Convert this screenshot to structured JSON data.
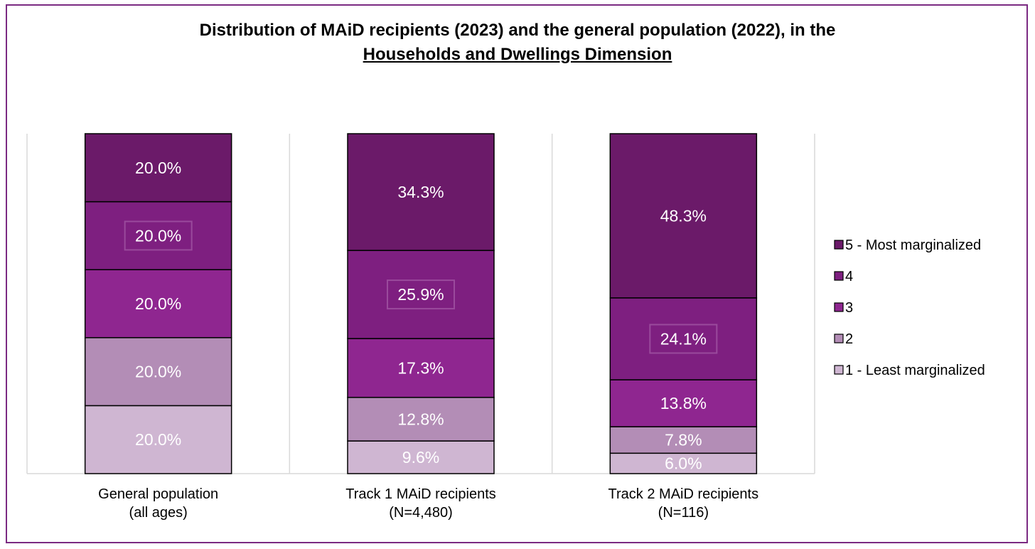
{
  "chart_data": {
    "type": "bar",
    "stacked": true,
    "title_line1": "Distribution of MAiD recipients (2023) and the general population (2022), in the",
    "title_line2": "Households and Dwellings Dimension",
    "categories": [
      [
        "General population",
        "(all ages)"
      ],
      [
        "Track 1 MAiD recipients",
        "(N=4,480)"
      ],
      [
        "Track 2 MAiD recipients",
        "(N=116)"
      ]
    ],
    "series": [
      {
        "name": "1 - Least marginalized",
        "color": "#cfb6d2",
        "values": [
          20.0,
          9.6,
          6.0
        ],
        "labels": [
          "20.0%",
          "9.6%",
          "6.0%"
        ]
      },
      {
        "name": "2",
        "color": "#b38db6",
        "values": [
          20.0,
          12.8,
          7.8
        ],
        "labels": [
          "20.0%",
          "12.8%",
          "7.8%"
        ]
      },
      {
        "name": "3",
        "color": "#8f2690",
        "values": [
          20.0,
          17.3,
          13.8
        ],
        "labels": [
          "20.0%",
          "17.3%",
          "13.8%"
        ]
      },
      {
        "name": "4",
        "color": "#7e1f80",
        "values": [
          20.0,
          25.9,
          24.1
        ],
        "labels": [
          "20.0%",
          "25.9%",
          "24.1%"
        ]
      },
      {
        "name": "5 - Most marginalized",
        "color": "#6b1a69",
        "values": [
          20.0,
          34.3,
          48.3
        ],
        "labels": [
          "20.0%",
          "34.3%",
          "48.3%"
        ]
      }
    ],
    "ylim": [
      0,
      100
    ],
    "legend_position": "right",
    "legend_order": [
      "5 - Most marginalized",
      "4",
      "3",
      "2",
      "1 - Least marginalized"
    ],
    "highlighted_series": "4",
    "gridlines": "vertical category separators"
  }
}
